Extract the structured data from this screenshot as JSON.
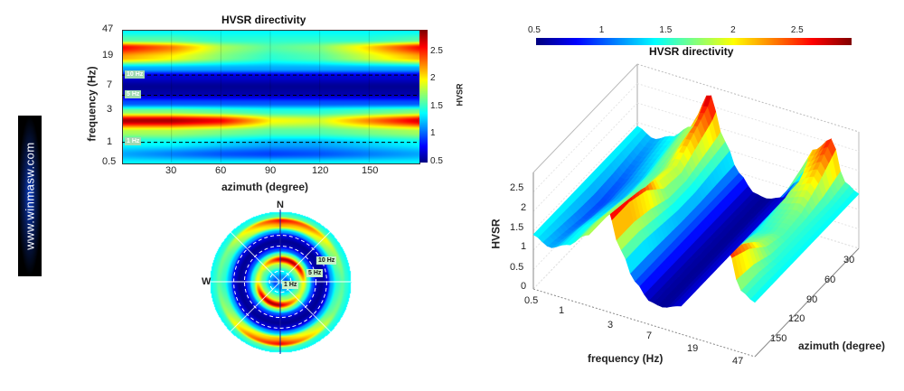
{
  "watermark": "www.winmasw.com",
  "chart_data": [
    {
      "type": "heatmap",
      "title": "HVSR directivity",
      "xlabel": "azimuth (degree)",
      "ylabel": "frequency (Hz)",
      "xlim": [
        0,
        180
      ],
      "ylim": [
        0.5,
        47
      ],
      "yscale": "log",
      "xticks": [
        "30",
        "60",
        "90",
        "120",
        "150"
      ],
      "yticks": [
        "47",
        "19",
        "7",
        "3",
        "1",
        "0.5"
      ],
      "colorbar": {
        "label": "HVSR",
        "range": [
          0.5,
          2.9
        ],
        "ticks": [
          "2.5",
          "2",
          "1.5",
          "1",
          "0.5"
        ],
        "colormap": "jet"
      },
      "annotations": [
        "10 Hz",
        "5 Hz",
        "1 Hz"
      ],
      "reference_lines_hz": [
        1,
        5,
        10
      ],
      "azimuth_samples": [
        0,
        30,
        60,
        90,
        120,
        150,
        180
      ],
      "frequency_samples": [
        0.5,
        0.7,
        1,
        1.5,
        2.2,
        3,
        4,
        5.5,
        7,
        10,
        13,
        19,
        27,
        35,
        47
      ],
      "hvsr": [
        [
          1.4,
          1.4,
          1.4,
          1.4,
          1.4,
          1.4,
          1.4
        ],
        [
          1.2,
          1.1,
          1.0,
          0.95,
          1.0,
          1.1,
          1.2
        ],
        [
          1.4,
          1.4,
          1.3,
          1.2,
          1.2,
          1.3,
          1.4
        ],
        [
          1.8,
          1.8,
          1.7,
          1.6,
          1.6,
          1.7,
          1.8
        ],
        [
          2.8,
          2.8,
          2.6,
          2.0,
          1.9,
          2.3,
          2.7
        ],
        [
          1.7,
          1.7,
          1.6,
          1.5,
          1.5,
          1.6,
          1.7
        ],
        [
          1.0,
          1.0,
          1.0,
          1.0,
          1.0,
          1.0,
          1.0
        ],
        [
          0.6,
          0.6,
          0.6,
          0.6,
          0.6,
          0.6,
          0.6
        ],
        [
          0.55,
          0.55,
          0.55,
          0.55,
          0.55,
          0.55,
          0.55
        ],
        [
          0.7,
          0.7,
          0.7,
          0.7,
          0.7,
          0.7,
          0.7
        ],
        [
          1.2,
          1.2,
          1.2,
          1.2,
          1.2,
          1.2,
          1.2
        ],
        [
          2.2,
          2.0,
          1.7,
          1.5,
          1.6,
          1.9,
          2.2
        ],
        [
          2.6,
          2.3,
          1.8,
          1.6,
          1.7,
          2.1,
          2.6
        ],
        [
          1.6,
          1.6,
          1.5,
          1.5,
          1.5,
          1.5,
          1.6
        ],
        [
          1.4,
          1.4,
          1.4,
          1.4,
          1.4,
          1.4,
          1.4
        ]
      ]
    },
    {
      "type": "polar",
      "directions": [
        "N",
        "W"
      ],
      "annotations": [
        "10 Hz",
        "5 Hz",
        "1 Hz"
      ]
    },
    {
      "type": "surface",
      "title": "HVSR directivity",
      "xlabel": "frequency (Hz)",
      "ylabel": "azimuth (degree)",
      "zlabel": "HVSR",
      "xticks": [
        "0.5",
        "1",
        "3",
        "7",
        "19",
        "47"
      ],
      "yticks": [
        "30",
        "60",
        "90",
        "120",
        "150"
      ],
      "zticks": [
        "0",
        "0.5",
        "1",
        "1.5",
        "2",
        "2.5"
      ],
      "zlim": [
        0,
        3
      ],
      "colorbar": {
        "ticks": [
          "0.5",
          "1",
          "1.5",
          "2",
          "2.5"
        ],
        "range": [
          0.5,
          2.9
        ],
        "placement": "top",
        "colormap": "jet"
      }
    }
  ]
}
